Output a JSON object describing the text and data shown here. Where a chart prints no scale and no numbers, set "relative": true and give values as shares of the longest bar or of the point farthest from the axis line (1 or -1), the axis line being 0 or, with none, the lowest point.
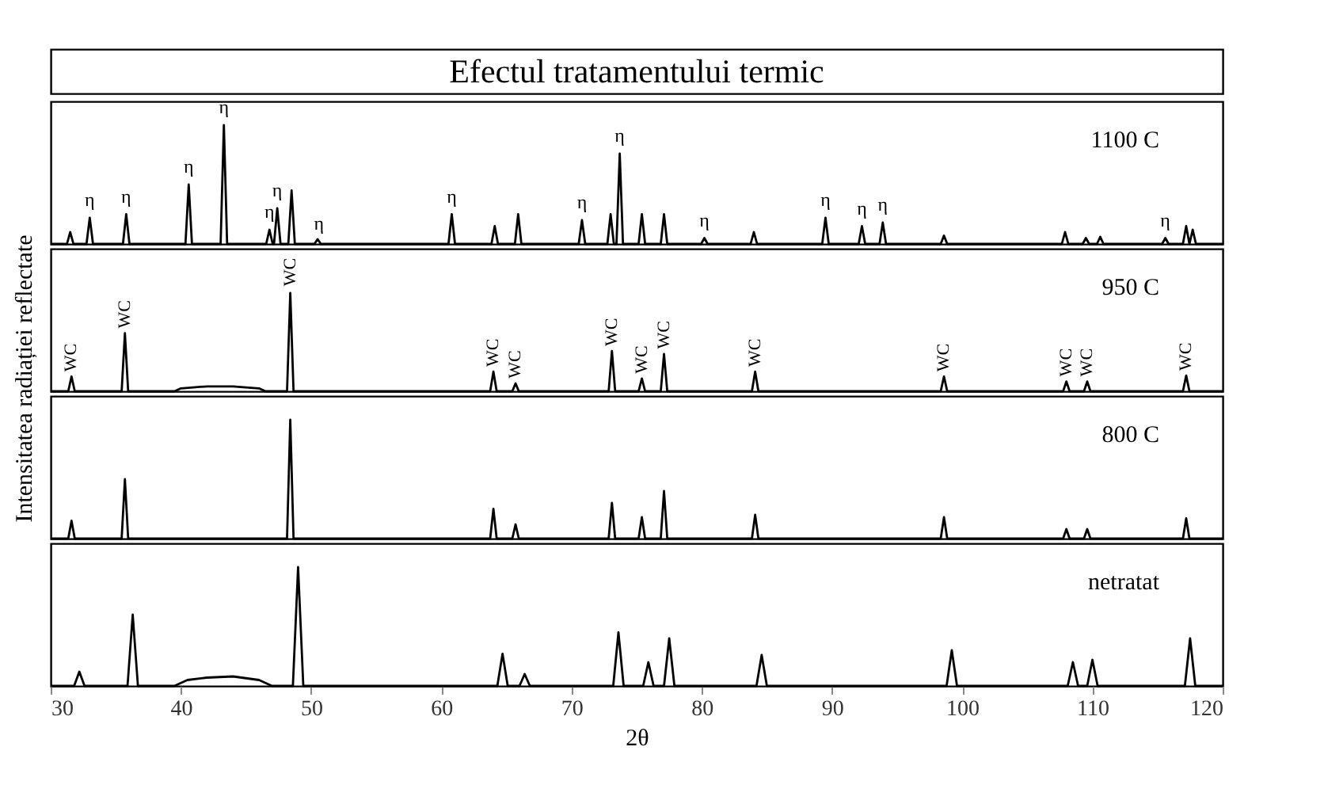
{
  "chart_data": [
    {
      "type": "line",
      "title": "Efectul tratamentului termic",
      "ylabel": "Intensitatea radiației reflectate",
      "relative": true,
      "xlim": [
        30,
        120
      ],
      "xticks": [
        30,
        40,
        50,
        60,
        70,
        80,
        90,
        100,
        110,
        120
      ],
      "tick_labels": false,
      "series": [
        {
          "name": "1100 C",
          "color": "#000000",
          "x": [
            30,
            31.25,
            31.5,
            31.75,
            32.75,
            33,
            33.25,
            35.55,
            35.8,
            36.05,
            40.35,
            40.6,
            40.85,
            43.05,
            43.3,
            43.55,
            46.55,
            46.8,
            47.05,
            47.15,
            47.4,
            47.65,
            48.25,
            48.5,
            48.75,
            50.25,
            50.5,
            50.75,
            60.55,
            60.8,
            61.05,
            63.85,
            64.1,
            64.35,
            65.65,
            65.9,
            66.15,
            70.55,
            70.8,
            71.05,
            72.75,
            73.0,
            73.25,
            73.45,
            73.7,
            73.95,
            75.15,
            75.4,
            75.65,
            76.85,
            77.1,
            77.35,
            79.95,
            80.2,
            80.45,
            83.75,
            84.0,
            84.25,
            89.25,
            89.5,
            89.75,
            92.05,
            92.3,
            92.55,
            93.65,
            93.9,
            94.15,
            98.35,
            98.6,
            98.85,
            107.65,
            107.9,
            108.15,
            109.25,
            109.5,
            109.75,
            110.35,
            110.6,
            110.85,
            115.35,
            115.6,
            115.85,
            116.95,
            117.2,
            117.45,
            117.7,
            117.95,
            120
          ],
          "values": [
            0,
            0,
            0.1,
            0,
            0,
            0.22,
            0,
            0,
            0.25,
            0,
            0,
            0.5,
            0,
            0,
            1,
            0,
            0,
            0.12,
            0,
            0,
            0.3,
            0,
            0,
            0.45,
            0,
            0,
            0.04,
            0,
            0,
            0.25,
            0,
            0,
            0.15,
            0,
            0,
            0.25,
            0,
            0,
            0.2,
            0,
            0,
            0.25,
            0,
            0,
            0.76,
            0,
            0,
            0.25,
            0,
            0,
            0.25,
            0,
            0,
            0.05,
            0,
            0,
            0.1,
            0,
            0,
            0.22,
            0,
            0,
            0.15,
            0,
            0,
            0.18,
            0,
            0,
            0.07,
            0,
            0,
            0.1,
            0,
            0,
            0.05,
            0,
            0,
            0.06,
            0,
            0,
            0.05,
            0,
            0,
            0.15,
            0,
            0.12,
            0,
            0
          ]
        }
      ],
      "annotations": [
        {
          "text": "η",
          "x": 33,
          "y": 0.28
        },
        {
          "text": "η",
          "x": 35.8,
          "y": 0.31
        },
        {
          "text": "η",
          "x": 40.6,
          "y": 0.56
        },
        {
          "text": "η",
          "x": 43.3,
          "y": 1.06
        },
        {
          "text": "η",
          "x": 46.8,
          "y": 0.18
        },
        {
          "text": "η",
          "x": 47.4,
          "y": 0.36
        },
        {
          "text": "η",
          "x": 50.6,
          "y": 0.08
        },
        {
          "text": "η",
          "x": 60.8,
          "y": 0.31
        },
        {
          "text": "η",
          "x": 70.8,
          "y": 0.26
        },
        {
          "text": "η",
          "x": 73.7,
          "y": 0.82
        },
        {
          "text": "η",
          "x": 80.2,
          "y": 0.11
        },
        {
          "text": "η",
          "x": 89.5,
          "y": 0.28
        },
        {
          "text": "η",
          "x": 92.3,
          "y": 0.21
        },
        {
          "text": "η",
          "x": 93.9,
          "y": 0.24
        },
        {
          "text": "η",
          "x": 115.6,
          "y": 0.11
        }
      ]
    },
    {
      "type": "line",
      "relative": true,
      "xlim": [
        30,
        120
      ],
      "xticks": [
        30,
        40,
        50,
        60,
        70,
        80,
        90,
        100,
        110,
        120
      ],
      "tick_labels": false,
      "series": [
        {
          "name": "950 C",
          "color": "#000000",
          "x": [
            30,
            31.35,
            31.6,
            31.85,
            35.45,
            35.7,
            35.95,
            39.5,
            40,
            42,
            44,
            46,
            46.5,
            48.15,
            48.4,
            48.65,
            63.75,
            64,
            64.25,
            65.45,
            65.7,
            65.95,
            72.85,
            73.1,
            73.35,
            75.15,
            75.4,
            75.65,
            76.85,
            77.1,
            77.35,
            83.85,
            84.1,
            84.35,
            98.35,
            98.6,
            98.85,
            107.75,
            108,
            108.25,
            109.35,
            109.6,
            109.85,
            116.95,
            117.2,
            117.45,
            120
          ],
          "values": [
            0,
            0,
            0.15,
            0,
            0,
            0.59,
            0,
            0,
            0.03,
            0.05,
            0.05,
            0.03,
            0,
            0,
            1,
            0,
            0,
            0.2,
            0,
            0,
            0.08,
            0,
            0,
            0.41,
            0,
            0,
            0.13,
            0,
            0,
            0.38,
            0,
            0,
            0.2,
            0,
            0,
            0.15,
            0,
            0,
            0.1,
            0,
            0,
            0.1,
            0,
            0,
            0.16,
            0,
            0
          ]
        }
      ],
      "annotations": [
        {
          "text": "WC",
          "x": 31.6,
          "y": 0.2
        },
        {
          "text": "WC",
          "x": 35.7,
          "y": 0.64
        },
        {
          "text": "WC",
          "x": 48.4,
          "y": 1.07
        },
        {
          "text": "WC",
          "x": 64,
          "y": 0.25
        },
        {
          "text": "WC",
          "x": 65.7,
          "y": 0.13
        },
        {
          "text": "WC",
          "x": 73.1,
          "y": 0.46
        },
        {
          "text": "WC",
          "x": 75.4,
          "y": 0.18
        },
        {
          "text": "WC",
          "x": 77.1,
          "y": 0.43
        },
        {
          "text": "WC",
          "x": 84.1,
          "y": 0.25
        },
        {
          "text": "WC",
          "x": 98.6,
          "y": 0.2
        },
        {
          "text": "WC",
          "x": 108,
          "y": 0.15
        },
        {
          "text": "WC",
          "x": 109.6,
          "y": 0.15
        },
        {
          "text": "WC",
          "x": 117.2,
          "y": 0.21
        }
      ]
    },
    {
      "type": "line",
      "relative": true,
      "xlim": [
        30,
        120
      ],
      "xticks": [
        30,
        40,
        50,
        60,
        70,
        80,
        90,
        100,
        110,
        120
      ],
      "tick_labels": false,
      "series": [
        {
          "name": "800 C",
          "color": "#000000",
          "x": [
            30,
            31.35,
            31.6,
            31.85,
            35.45,
            35.7,
            35.95,
            48.15,
            48.4,
            48.65,
            63.75,
            64,
            64.25,
            65.45,
            65.7,
            65.95,
            72.85,
            73.1,
            73.35,
            75.15,
            75.4,
            75.65,
            76.85,
            77.1,
            77.35,
            83.85,
            84.1,
            84.35,
            98.35,
            98.6,
            98.85,
            107.75,
            108,
            108.25,
            109.35,
            109.6,
            109.85,
            116.95,
            117.2,
            117.45,
            120
          ],
          "values": [
            0,
            0,
            0.15,
            0,
            0,
            0.5,
            0,
            0,
            1,
            0,
            0,
            0.25,
            0,
            0,
            0.12,
            0,
            0,
            0.3,
            0,
            0,
            0.18,
            0,
            0,
            0.4,
            0,
            0,
            0.2,
            0,
            0,
            0.18,
            0,
            0,
            0.08,
            0,
            0,
            0.08,
            0,
            0,
            0.17,
            0,
            0
          ]
        }
      ]
    },
    {
      "type": "line",
      "relative": true,
      "xlabel": "2θ",
      "xlim": [
        30,
        120
      ],
      "xticks": [
        30,
        40,
        50,
        60,
        70,
        80,
        90,
        100,
        110,
        120
      ],
      "tick_labels": "x",
      "series": [
        {
          "name": "netratat",
          "color": "#000000",
          "x": [
            30,
            31.8,
            32.2,
            32.6,
            35.9,
            36.3,
            36.7,
            39.5,
            40.5,
            42,
            44,
            46,
            47,
            48.6,
            49,
            49.4,
            64.3,
            64.7,
            65.1,
            66,
            66.4,
            66.8,
            73.2,
            73.6,
            74,
            75.5,
            75.9,
            76.3,
            77.1,
            77.5,
            77.9,
            84.2,
            84.6,
            85,
            98.8,
            99.2,
            99.6,
            108.1,
            108.5,
            108.9,
            109.6,
            110,
            110.4,
            117.1,
            117.5,
            117.9,
            120
          ],
          "values": [
            0,
            0,
            0.12,
            0,
            0,
            0.6,
            0,
            0,
            0.05,
            0.07,
            0.08,
            0.05,
            0,
            0,
            1,
            0,
            0,
            0.27,
            0,
            0,
            0.1,
            0,
            0,
            0.45,
            0,
            0,
            0.2,
            0,
            0,
            0.4,
            0,
            0,
            0.26,
            0,
            0,
            0.3,
            0,
            0,
            0.2,
            0,
            0,
            0.22,
            0,
            0,
            0.4,
            0,
            0
          ]
        }
      ]
    }
  ]
}
